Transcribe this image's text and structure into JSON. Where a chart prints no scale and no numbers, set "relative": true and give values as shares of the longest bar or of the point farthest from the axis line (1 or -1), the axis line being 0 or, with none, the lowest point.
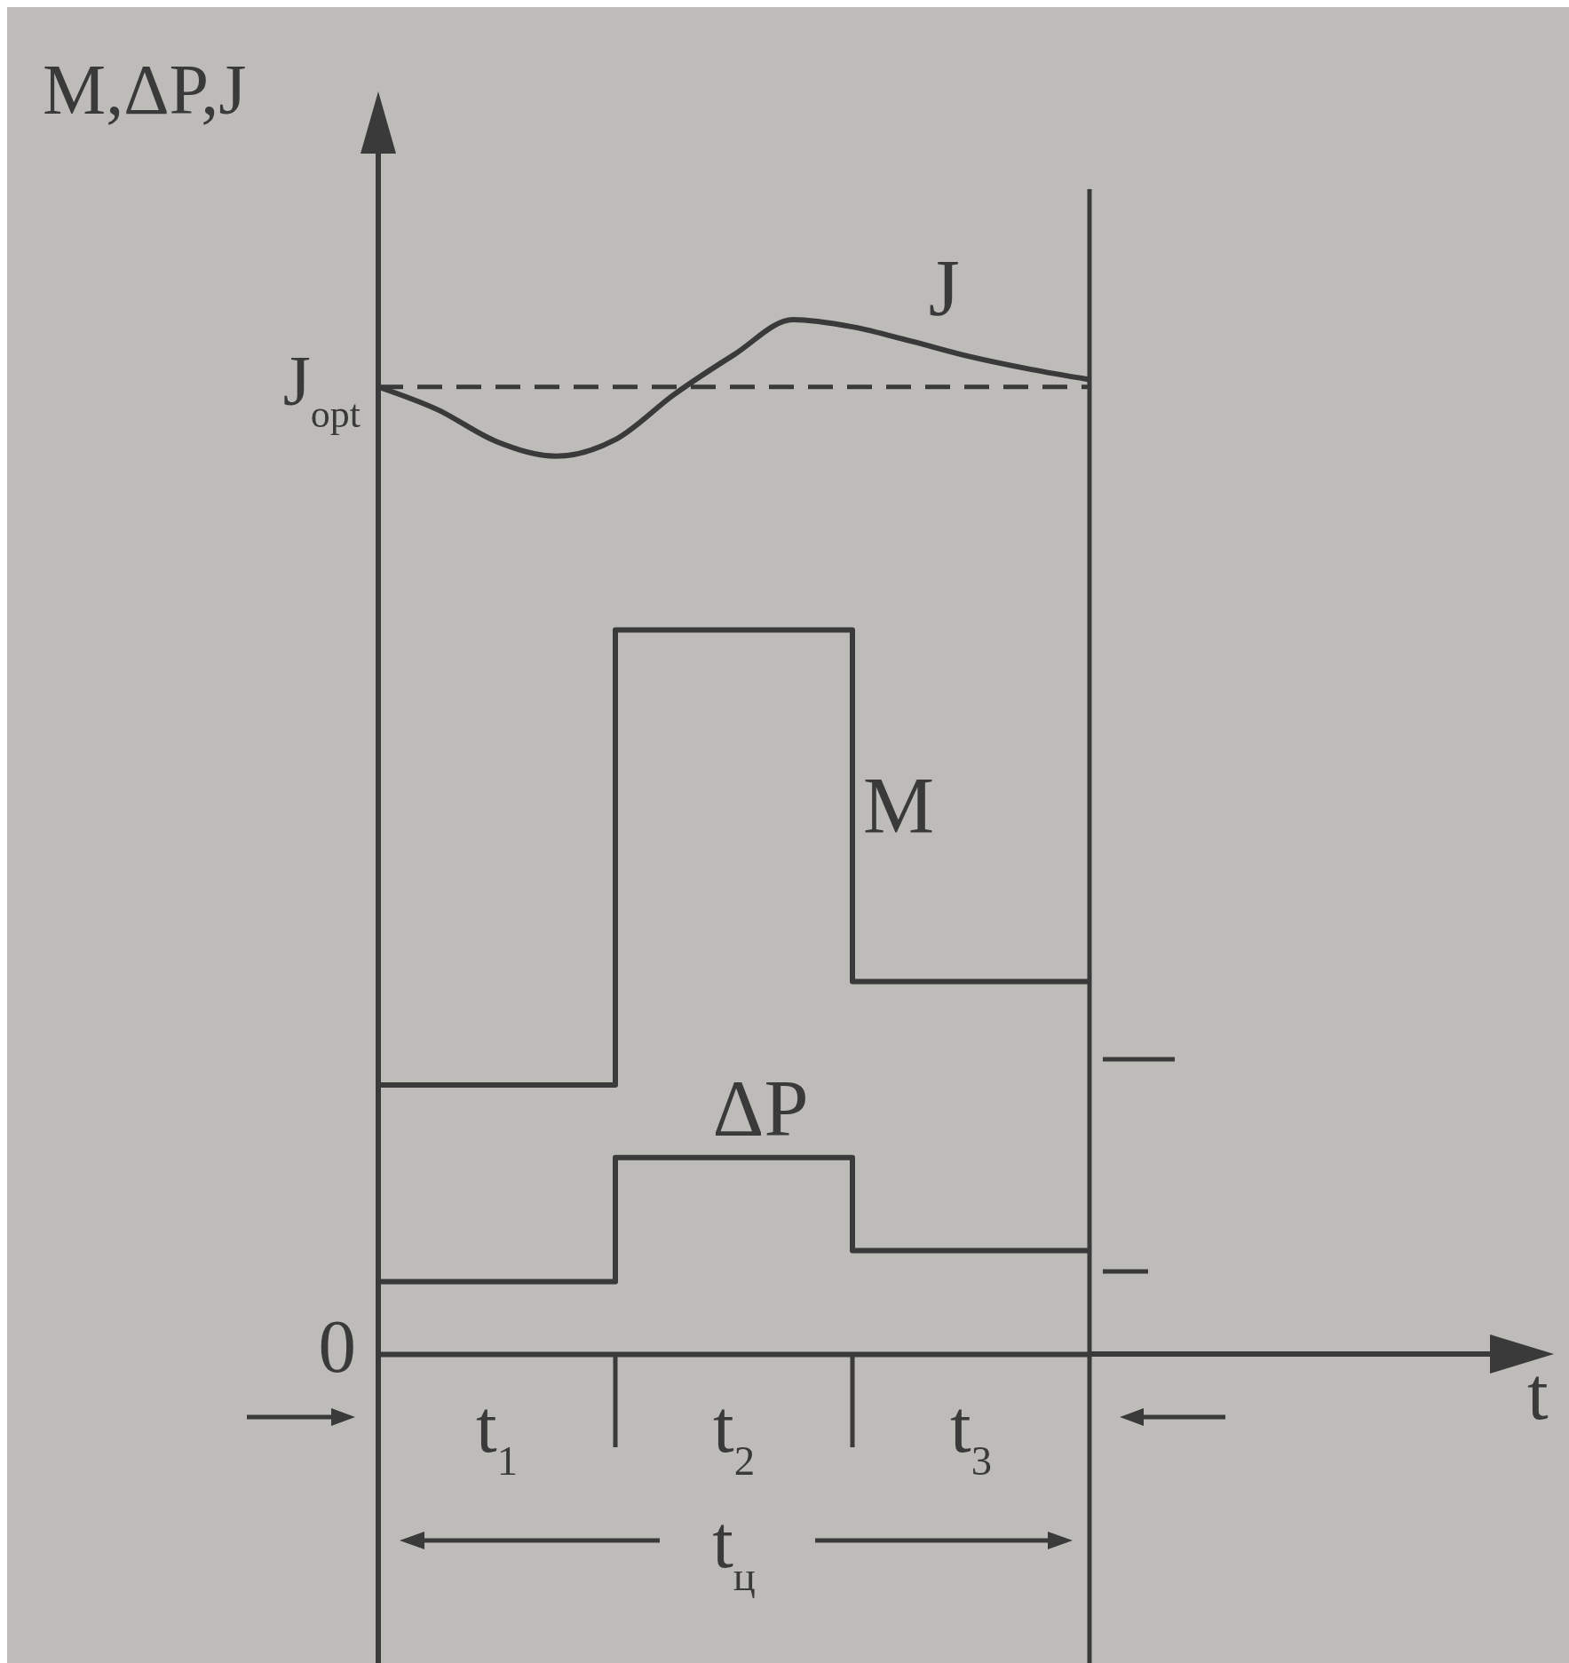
{
  "chart_data": {
    "type": "step",
    "relative": true,
    "ylabel": "M,ΔP,J",
    "categories": [
      null,
      null,
      null,
      null,
      null,
      null,
      null,
      null,
      null,
      null,
      null,
      null,
      null
    ],
    "series": [
      {
        "name": "M",
        "type": "step",
        "color": "#3a3a3a",
        "values": [
          0.26,
          0.26,
          0.26,
          0.26,
          0.7,
          0.7,
          0.7,
          0.7,
          0.36,
          0.36,
          0.36,
          0.36,
          0.36
        ]
      },
      {
        "name": "ΔP",
        "type": "step",
        "color": "#3a3a3a",
        "values": [
          0.07,
          0.07,
          0.07,
          0.07,
          0.19,
          0.19,
          0.19,
          0.19,
          0.1,
          0.1,
          0.1,
          0.1,
          0.1
        ]
      },
      {
        "name": "J",
        "type": "line",
        "color": "#3a3a3a",
        "values": [
          0.935,
          0.913,
          0.882,
          0.868,
          0.884,
          0.928,
          0.966,
          1.0,
          0.993,
          0.979,
          0.964,
          0.952,
          0.942
        ]
      },
      {
        "name": "J$_{opt}$",
        "type": "line",
        "line_style": "dashed",
        "color": "#3a3a3a",
        "values": [
          0.935,
          0.935,
          0.935,
          0.935,
          0.935,
          0.935,
          0.935,
          0.935,
          0.935,
          0.935,
          0.935,
          0.935,
          0.935
        ]
      }
    ],
    "annotations": [
      "0",
      "t$_{1}$",
      "t$_{2}$",
      "t$_{3}$",
      "t$_{ц}$",
      "t"
    ]
  }
}
